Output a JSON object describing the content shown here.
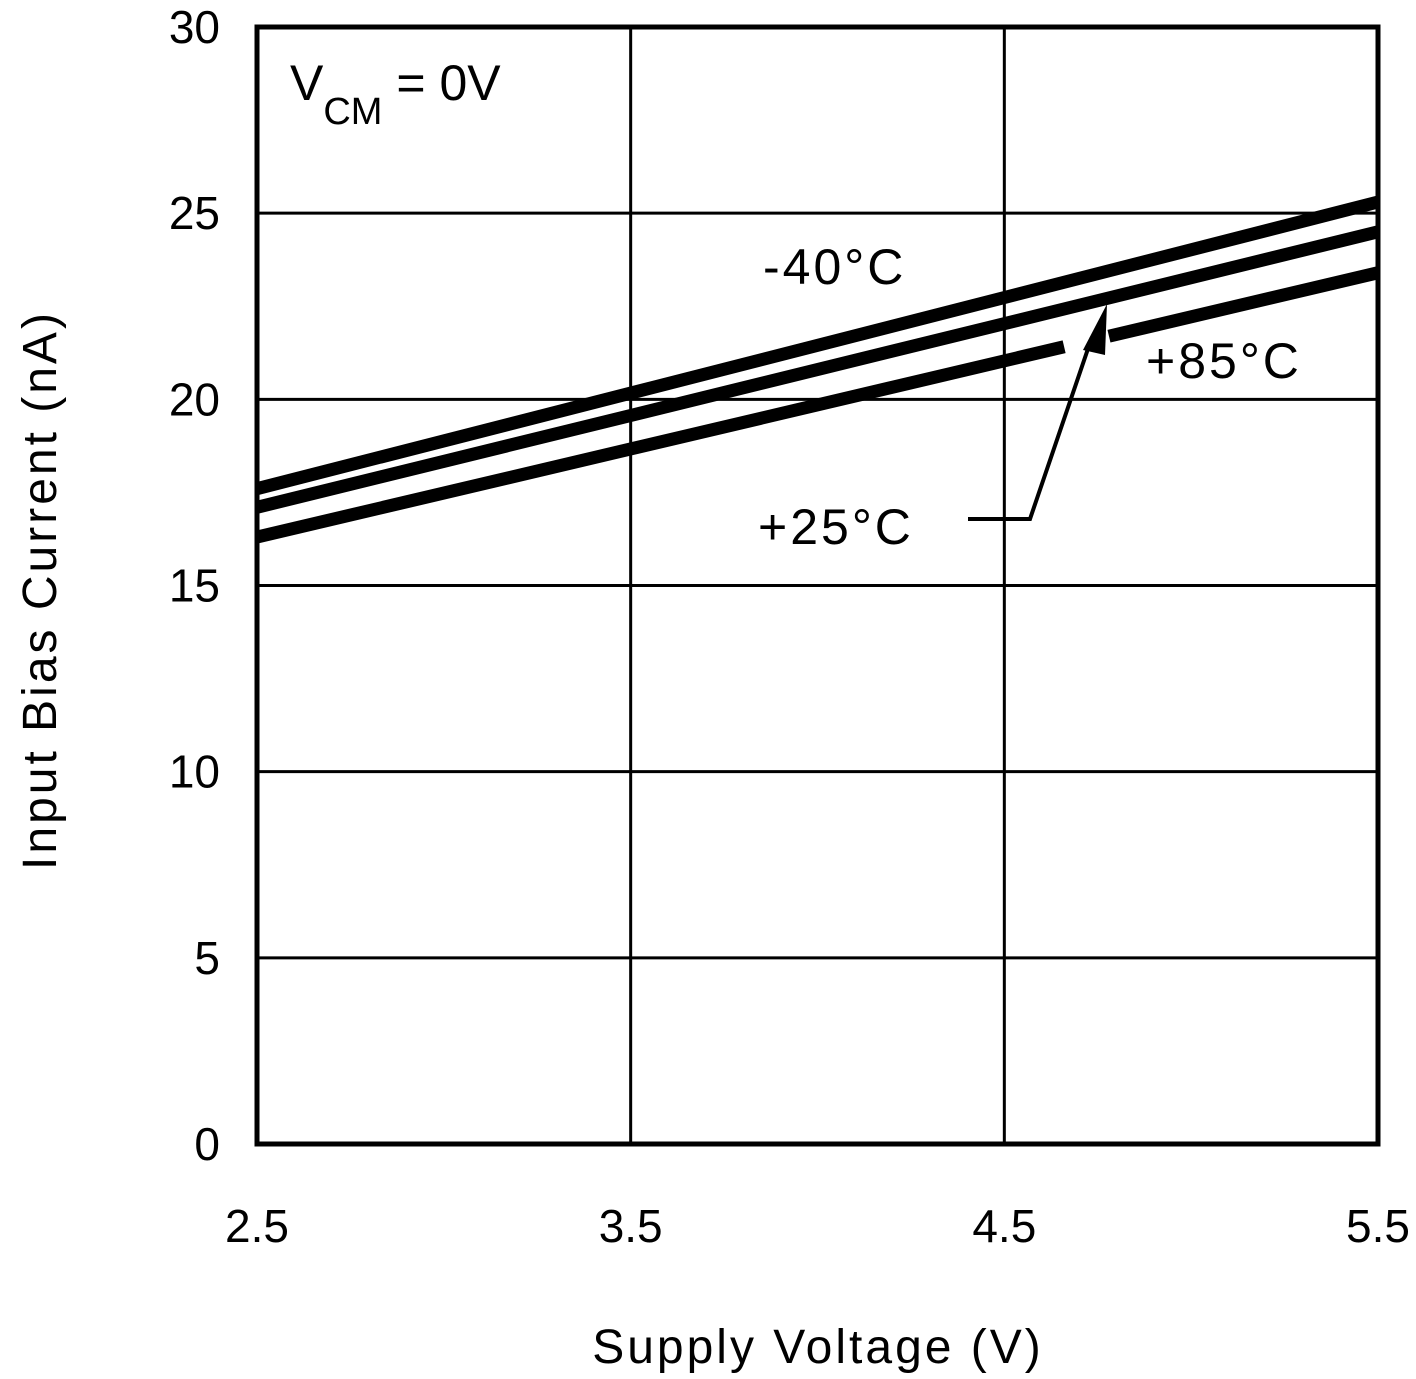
{
  "chart_data": {
    "type": "line",
    "xlabel": "Supply Voltage (V)",
    "ylabel": "Input Bias Current (nA)",
    "xlim": [
      2.5,
      5.5
    ],
    "ylim": [
      0,
      30
    ],
    "x_ticks": [
      "2.5",
      "3.5",
      "4.5",
      "5.5"
    ],
    "y_ticks": [
      "0",
      "5",
      "10",
      "15",
      "20",
      "25",
      "30"
    ],
    "grid": true,
    "condition": {
      "main": "V",
      "subscript": "CM",
      "rest": " = 0V"
    },
    "series": [
      {
        "name": "-40°C",
        "x": [
          2.5,
          5.5
        ],
        "y": [
          17.6,
          25.3
        ]
      },
      {
        "name": "+25°C",
        "x": [
          2.5,
          5.5
        ],
        "y": [
          17.1,
          24.5
        ]
      },
      {
        "name": "+85°C",
        "x": [
          2.5,
          5.5
        ],
        "y": [
          16.3,
          23.4
        ]
      }
    ],
    "series_label_gap": [
      4.66,
      4.78
    ]
  }
}
